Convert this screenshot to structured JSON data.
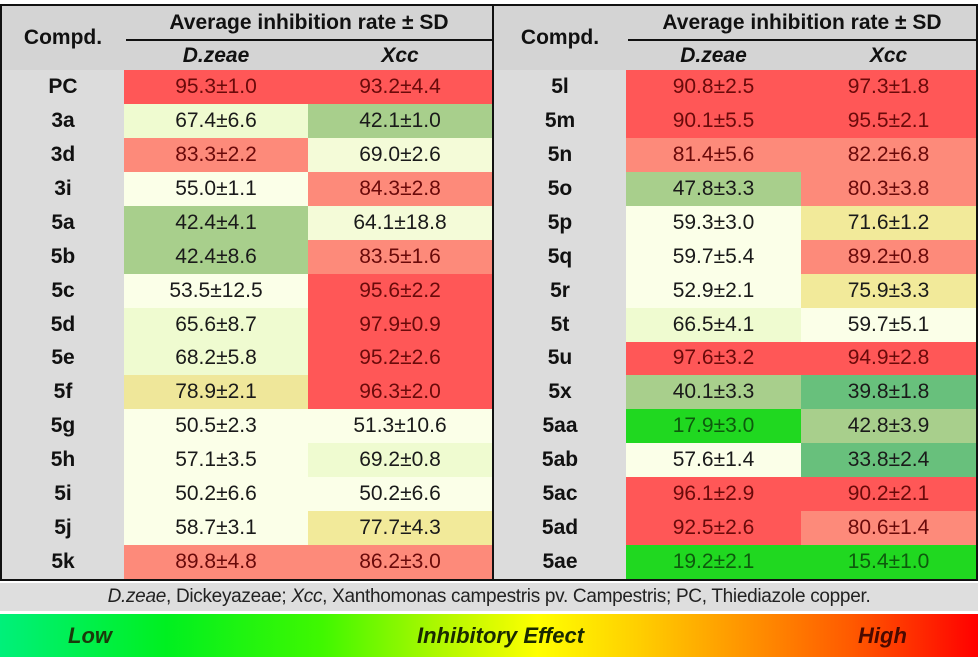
{
  "table_header": {
    "compd_label": "Compd.",
    "group_title": "Average inhibition rate ± SD",
    "col1": "D.zeae",
    "col2": "Xcc"
  },
  "left_rows": [
    {
      "name": "PC",
      "dz": "95.3±1.0",
      "xcc": "93.2±4.4",
      "dz_color": "#ff5757",
      "xcc_color": "#ff5757"
    },
    {
      "name": "3a",
      "dz": "67.4±6.6",
      "xcc": "42.1±1.0",
      "dz_color": "#effbd0",
      "xcc_color": "#a8cf8c"
    },
    {
      "name": "3d",
      "dz": "83.3±2.2",
      "xcc": "69.0±2.6",
      "dz_color": "#fd8a7a",
      "xcc_color": "#f4fbd8"
    },
    {
      "name": "3i",
      "dz": "55.0±1.1",
      "xcc": "84.3±2.8",
      "dz_color": "#fbffe8",
      "xcc_color": "#fd8a7a"
    },
    {
      "name": "5a",
      "dz": "42.4±4.1",
      "xcc": "64.1±18.8",
      "dz_color": "#a8cf8c",
      "xcc_color": "#f4fbd8"
    },
    {
      "name": "5b",
      "dz": "42.4±8.6",
      "xcc": "83.5±1.6",
      "dz_color": "#a8cf8c",
      "xcc_color": "#fd8a7a"
    },
    {
      "name": "5c",
      "dz": "53.5±12.5",
      "xcc": "95.6±2.2",
      "dz_color": "#fbffe8",
      "xcc_color": "#ff5757"
    },
    {
      "name": "5d",
      "dz": "65.6±8.7",
      "xcc": "97.9±0.9",
      "dz_color": "#effbd0",
      "xcc_color": "#ff5757"
    },
    {
      "name": "5e",
      "dz": "68.2±5.8",
      "xcc": "95.2±2.6",
      "dz_color": "#effbd0",
      "xcc_color": "#ff5757"
    },
    {
      "name": "5f",
      "dz": "78.9±2.1",
      "xcc": "96.3±2.0",
      "dz_color": "#efe79a",
      "xcc_color": "#ff5757"
    },
    {
      "name": "5g",
      "dz": "50.5±2.3",
      "xcc": "51.3±10.6",
      "dz_color": "#fbffe8",
      "xcc_color": "#fbffe8"
    },
    {
      "name": "5h",
      "dz": "57.1±3.5",
      "xcc": "69.2±0.8",
      "dz_color": "#fbffe8",
      "xcc_color": "#effbd0"
    },
    {
      "name": "5i",
      "dz": "50.2±6.6",
      "xcc": "50.2±6.6",
      "dz_color": "#fbffe8",
      "xcc_color": "#fbffe8"
    },
    {
      "name": "5j",
      "dz": "58.7±3.1",
      "xcc": "77.7±4.3",
      "dz_color": "#fbffe8",
      "xcc_color": "#f2ea9a"
    },
    {
      "name": "5k",
      "dz": "89.8±4.8",
      "xcc": "86.2±3.0",
      "dz_color": "#fd8a7a",
      "xcc_color": "#fd8a7a"
    }
  ],
  "right_rows": [
    {
      "name": "5l",
      "dz": "90.8±2.5",
      "xcc": "97.3±1.8",
      "dz_color": "#ff5757",
      "xcc_color": "#ff5757"
    },
    {
      "name": "5m",
      "dz": "90.1±5.5",
      "xcc": "95.5±2.1",
      "dz_color": "#ff5757",
      "xcc_color": "#ff5757"
    },
    {
      "name": "5n",
      "dz": "81.4±5.6",
      "xcc": "82.2±6.8",
      "dz_color": "#fd8a7a",
      "xcc_color": "#fd8a7a"
    },
    {
      "name": "5o",
      "dz": "47.8±3.3",
      "xcc": "80.3±3.8",
      "dz_color": "#a8cf8c",
      "xcc_color": "#fd8a7a"
    },
    {
      "name": "5p",
      "dz": "59.3±3.0",
      "xcc": "71.6±1.2",
      "dz_color": "#fbffe8",
      "xcc_color": "#f2ea9a"
    },
    {
      "name": "5q",
      "dz": "59.7±5.4",
      "xcc": "89.2±0.8",
      "dz_color": "#fbffe8",
      "xcc_color": "#fd8a7a"
    },
    {
      "name": "5r",
      "dz": "52.9±2.1",
      "xcc": "75.9±3.3",
      "dz_color": "#fbffe8",
      "xcc_color": "#f2ea9a"
    },
    {
      "name": "5t",
      "dz": "66.5±4.1",
      "xcc": "59.7±5.1",
      "dz_color": "#effbd0",
      "xcc_color": "#fbffe8"
    },
    {
      "name": "5u",
      "dz": "97.6±3.2",
      "xcc": "94.9±2.8",
      "dz_color": "#ff5757",
      "xcc_color": "#ff5757"
    },
    {
      "name": "5x",
      "dz": "40.1±3.3",
      "xcc": "39.8±1.8",
      "dz_color": "#a8cf8c",
      "xcc_color": "#68c07c"
    },
    {
      "name": "5aa",
      "dz": "17.9±3.0",
      "xcc": "42.8±3.9",
      "dz_color": "#20d820",
      "xcc_color": "#a8cf8c"
    },
    {
      "name": "5ab",
      "dz": "57.6±1.4",
      "xcc": "33.8±2.4",
      "dz_color": "#fbffe8",
      "xcc_color": "#68c07c"
    },
    {
      "name": "5ac",
      "dz": "96.1±2.9",
      "xcc": "90.2±2.1",
      "dz_color": "#ff5757",
      "xcc_color": "#ff5757"
    },
    {
      "name": "5ad",
      "dz": "92.5±2.6",
      "xcc": "80.6±1.4",
      "dz_color": "#ff5757",
      "xcc_color": "#fd8a7a"
    },
    {
      "name": "5ae",
      "dz": "19.2±2.1",
      "xcc": "15.4±1.0",
      "dz_color": "#20d820",
      "xcc_color": "#20d820"
    }
  ],
  "footnote": {
    "dz_abbr": "D.zeae",
    "dz_text": ", Dickeyazeae; ",
    "xcc_abbr": "Xcc",
    "xcc_text": ", Xanthomonas campestris pv. Campestris; PC, Thiediazole copper."
  },
  "color_scale": {
    "low_label": "Low",
    "mid_label": "Inhibitory Effect",
    "high_label": "High"
  }
}
